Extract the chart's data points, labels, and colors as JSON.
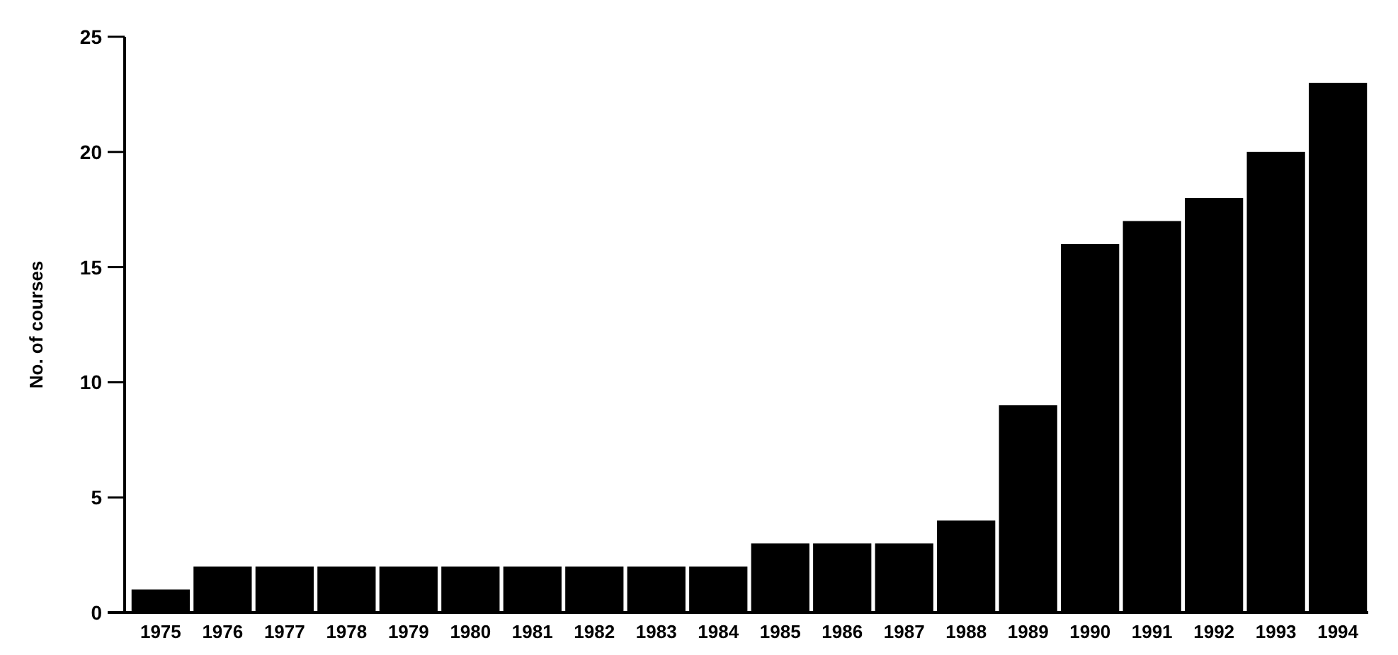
{
  "chart_data": {
    "type": "bar",
    "ylabel": "No. of courses",
    "categories": [
      "1975",
      "1976",
      "1977",
      "1978",
      "1979",
      "1980",
      "1981",
      "1982",
      "1983",
      "1984",
      "1985",
      "1986",
      "1987",
      "1988",
      "1989",
      "1990",
      "1991",
      "1992",
      "1993",
      "1994"
    ],
    "values": [
      1,
      2,
      2,
      2,
      2,
      2,
      2,
      2,
      2,
      2,
      3,
      3,
      3,
      4,
      9,
      16,
      17,
      18,
      20,
      23
    ],
    "color": "#000000",
    "ylim": [
      0,
      25
    ],
    "yticks": [
      0,
      5,
      10,
      15,
      20,
      25
    ],
    "grid": false
  }
}
